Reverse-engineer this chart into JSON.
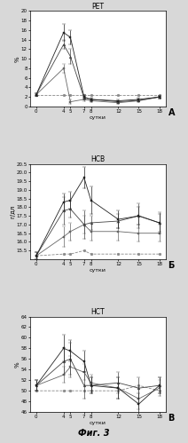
{
  "fig_width": 2.12,
  "fig_height": 4.99,
  "dpi": 100,
  "background": "#d8d8d8",
  "subplots": [
    {
      "title": "РЕТ",
      "title_fontsize": 5.5,
      "ylabel": "%",
      "ylabel_fontsize": 5,
      "xlabel": "сутки",
      "xlabel_fontsize": 4.5,
      "ylim": [
        0,
        20
      ],
      "yticks": [
        0,
        2,
        4,
        6,
        8,
        10,
        12,
        14,
        16,
        18,
        20
      ],
      "xticks": [
        0,
        4,
        5,
        7,
        8,
        12,
        15,
        18
      ],
      "label_letter": "А",
      "series": [
        {
          "x": [
            0,
            4,
            5,
            7,
            8,
            12,
            15,
            18
          ],
          "y": [
            2.5,
            15.5,
            14.5,
            2.0,
            1.5,
            1.2,
            1.5,
            2.0
          ],
          "yerr": [
            0.3,
            1.8,
            1.5,
            0.4,
            0.3,
            0.2,
            0.3,
            0.3
          ],
          "color": "#222222",
          "linestyle": "-",
          "marker": "s",
          "markersize": 2.0,
          "zorder": 4
        },
        {
          "x": [
            0,
            4,
            5,
            7,
            8,
            12,
            15,
            18
          ],
          "y": [
            2.5,
            13.0,
            10.5,
            1.8,
            1.5,
            1.0,
            1.3,
            2.0
          ],
          "yerr": [
            0.3,
            1.0,
            1.5,
            0.3,
            0.2,
            0.2,
            0.2,
            0.3
          ],
          "color": "#444444",
          "linestyle": "-",
          "marker": "^",
          "markersize": 2.0,
          "zorder": 3
        },
        {
          "x": [
            0,
            4,
            5,
            7,
            8,
            12,
            15,
            18
          ],
          "y": [
            2.5,
            8.0,
            1.0,
            1.5,
            1.2,
            0.8,
            1.2,
            2.0
          ],
          "yerr": [
            0.3,
            1.0,
            0.4,
            0.3,
            0.2,
            0.2,
            0.2,
            0.3
          ],
          "color": "#666666",
          "linestyle": "-",
          "marker": "s",
          "markersize": 2.0,
          "zorder": 2
        },
        {
          "x": [
            0,
            4,
            5,
            7,
            8,
            12,
            15,
            18
          ],
          "y": [
            2.5,
            2.5,
            2.5,
            2.5,
            2.5,
            2.5,
            2.5,
            2.5
          ],
          "yerr": [
            0.0,
            0.0,
            0.0,
            0.0,
            0.0,
            0.0,
            0.0,
            0.0
          ],
          "color": "#888888",
          "linestyle": "--",
          "marker": "o",
          "markersize": 2.0,
          "zorder": 1
        }
      ]
    },
    {
      "title": "НСВ",
      "title_fontsize": 5.5,
      "ylabel": "г/дл",
      "ylabel_fontsize": 5,
      "xlabel": "сутки",
      "xlabel_fontsize": 4.5,
      "ylim": [
        15.0,
        20.5
      ],
      "yticks": [
        15.5,
        16.0,
        16.5,
        17.0,
        17.5,
        18.0,
        18.5,
        19.0,
        19.5,
        20.0,
        20.5
      ],
      "xticks": [
        0,
        4,
        5,
        7,
        8,
        12,
        15,
        18
      ],
      "label_letter": "Б",
      "series": [
        {
          "x": [
            0,
            4,
            5,
            7,
            8,
            12,
            15,
            18
          ],
          "y": [
            15.2,
            18.3,
            18.4,
            19.7,
            18.4,
            17.3,
            17.5,
            17.1
          ],
          "yerr": [
            0.2,
            0.5,
            0.5,
            0.6,
            0.8,
            0.5,
            0.5,
            0.5
          ],
          "color": "#222222",
          "linestyle": "-",
          "marker": "s",
          "markersize": 2.0,
          "zorder": 4
        },
        {
          "x": [
            0,
            4,
            5,
            7,
            8,
            12,
            15,
            18
          ],
          "y": [
            15.2,
            17.8,
            17.9,
            17.0,
            17.1,
            17.2,
            17.5,
            17.1
          ],
          "yerr": [
            0.2,
            0.8,
            0.5,
            0.8,
            0.4,
            0.4,
            0.7,
            0.6
          ],
          "color": "#444444",
          "linestyle": "-",
          "marker": "^",
          "markersize": 2.0,
          "zorder": 3
        },
        {
          "x": [
            0,
            4,
            5,
            7,
            8,
            12,
            15,
            18
          ],
          "y": [
            15.2,
            16.3,
            16.6,
            17.0,
            16.6,
            16.6,
            16.5,
            16.5
          ],
          "yerr": [
            0.2,
            0.6,
            0.5,
            0.5,
            0.5,
            0.5,
            0.5,
            0.5
          ],
          "color": "#666666",
          "linestyle": "-",
          "marker": "s",
          "markersize": 2.0,
          "zorder": 2
        },
        {
          "x": [
            0,
            4,
            5,
            7,
            8,
            12,
            15,
            18
          ],
          "y": [
            15.2,
            15.3,
            15.3,
            15.5,
            15.3,
            15.3,
            15.3,
            15.3
          ],
          "yerr": [
            0.0,
            0.0,
            0.0,
            0.0,
            0.0,
            0.0,
            0.0,
            0.0
          ],
          "color": "#888888",
          "linestyle": "--",
          "marker": "o",
          "markersize": 2.0,
          "zorder": 1
        }
      ]
    },
    {
      "title": "НСТ",
      "title_fontsize": 5.5,
      "ylabel": "%",
      "ylabel_fontsize": 5,
      "xlabel": "сутки",
      "xlabel_fontsize": 4.5,
      "ylim": [
        46,
        64
      ],
      "yticks": [
        46,
        48,
        50,
        52,
        54,
        56,
        58,
        60,
        62,
        64
      ],
      "xticks": [
        0,
        4,
        5,
        7,
        8,
        12,
        15,
        18
      ],
      "label_letter": "В",
      "series": [
        {
          "x": [
            0,
            4,
            5,
            7,
            8,
            12,
            15,
            18
          ],
          "y": [
            51,
            58.0,
            57.5,
            55.5,
            51.0,
            50.5,
            47.5,
            51.0
          ],
          "yerr": [
            1.0,
            2.5,
            2.0,
            2.0,
            1.5,
            2.0,
            2.0,
            1.5
          ],
          "color": "#222222",
          "linestyle": "-",
          "marker": "s",
          "markersize": 2.0,
          "zorder": 4
        },
        {
          "x": [
            0,
            4,
            5,
            7,
            8,
            12,
            15,
            18
          ],
          "y": [
            51,
            55.5,
            56.0,
            51.0,
            51.0,
            51.5,
            50.5,
            51.0
          ],
          "yerr": [
            1.0,
            2.5,
            3.0,
            2.5,
            1.5,
            2.0,
            2.0,
            1.5
          ],
          "color": "#444444",
          "linestyle": "-",
          "marker": "^",
          "markersize": 2.0,
          "zorder": 3
        },
        {
          "x": [
            0,
            4,
            5,
            7,
            8,
            12,
            15,
            18
          ],
          "y": [
            51,
            53.0,
            54.5,
            53.5,
            51.5,
            50.5,
            48.5,
            50.5
          ],
          "yerr": [
            1.0,
            1.5,
            2.0,
            1.5,
            1.5,
            2.0,
            2.0,
            1.5
          ],
          "color": "#666666",
          "linestyle": "-",
          "marker": "s",
          "markersize": 2.0,
          "zorder": 2
        },
        {
          "x": [
            0,
            4,
            5,
            7,
            8,
            12,
            15,
            18
          ],
          "y": [
            50,
            50,
            50,
            50,
            50,
            50,
            51,
            50
          ],
          "yerr": [
            0.0,
            0.0,
            0.0,
            0.0,
            0.0,
            0.0,
            0.0,
            0.0
          ],
          "color": "#888888",
          "linestyle": "--",
          "marker": "o",
          "markersize": 2.0,
          "zorder": 1
        }
      ]
    }
  ],
  "fig_label": "Фиг. 3",
  "fig_label_fontsize": 7
}
